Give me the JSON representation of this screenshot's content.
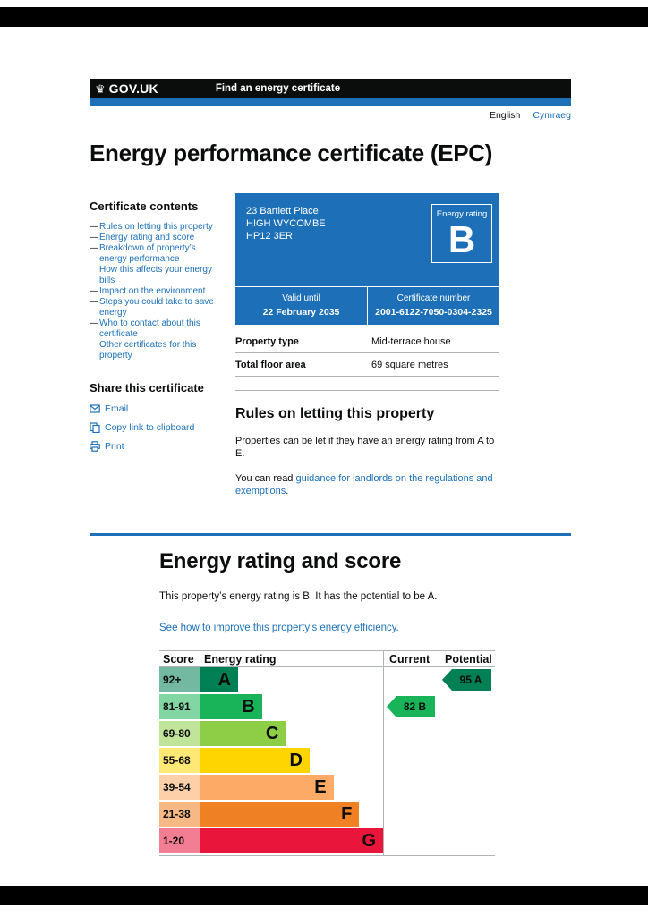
{
  "page": {
    "title": "Energy performance certificate (EPC)",
    "lang_current": "English",
    "lang_other": "Cymraeg"
  },
  "header": {
    "logo": "GOV.UK",
    "crown": "♛",
    "service_name": "Find an energy certificate",
    "bar_color": "#0b0c0c",
    "accent_color": "#1d70b8"
  },
  "sidebar": {
    "contents_title": "Certificate contents",
    "items": [
      {
        "dash": "—",
        "label": "Rules on letting this property"
      },
      {
        "dash": "—",
        "label": "Energy rating and score"
      },
      {
        "dash": "—",
        "label": "Breakdown of property’s energy performance"
      },
      {
        "dash": "",
        "label": "How this affects your energy bills"
      },
      {
        "dash": "—",
        "label": "Impact on the environment"
      },
      {
        "dash": "—",
        "label": "Steps you could take to save energy"
      },
      {
        "dash": "—",
        "label": "Who to contact about this certificate"
      },
      {
        "dash": "",
        "label": "Other certificates for this property"
      }
    ],
    "share_title": "Share this certificate",
    "share_items": [
      {
        "icon": "email-icon",
        "label": "Email"
      },
      {
        "icon": "copy-icon",
        "label": "Copy link to clipboard"
      },
      {
        "icon": "print-icon",
        "label": "Print"
      }
    ]
  },
  "summary": {
    "box_color": "#1d70b8",
    "address_lines": [
      "23 Bartlett Place",
      "HIGH WYCOMBE",
      "HP12 3ER"
    ],
    "energy_rating_label": "Energy rating",
    "energy_rating_value": "B",
    "valid_until_label": "Valid until",
    "valid_until_value": "22 February 2035",
    "certificate_number_label": "Certificate number",
    "certificate_number_value": "2001-6122-7050-0304-2325"
  },
  "property_details": {
    "rows": [
      {
        "label": "Property type",
        "value": "Mid-terrace house"
      },
      {
        "label": "Total floor area",
        "value": "69 square metres"
      }
    ]
  },
  "letting_rules": {
    "heading": "Rules on letting this property",
    "para1": "Properties can be let if they have an energy rating from A to E.",
    "para2_prefix": "You can read ",
    "para2_link": "guidance for landlords on the regulations and exemptions",
    "para2_suffix": "."
  },
  "rating_section": {
    "heading": "Energy rating and score",
    "description": "This property’s energy rating is B. It has the potential to be A.",
    "improve_link": "See how to improve this property’s energy efficiency."
  },
  "chart_data": {
    "type": "bar",
    "title": "Energy efficiency rating bands",
    "columns": [
      "Score",
      "Energy rating",
      "Current",
      "Potential"
    ],
    "bands": [
      {
        "score": "92+",
        "letter": "A",
        "color": "#008054",
        "tint": "#73b9a2",
        "width_pct": 21
      },
      {
        "score": "81-91",
        "letter": "B",
        "color": "#19b459",
        "tint": "#81d6a4",
        "width_pct": 34
      },
      {
        "score": "69-80",
        "letter": "C",
        "color": "#8dce46",
        "tint": "#c0e499",
        "width_pct": 47
      },
      {
        "score": "55-68",
        "letter": "D",
        "color": "#ffd500",
        "tint": "#ffe873",
        "width_pct": 60
      },
      {
        "score": "39-54",
        "letter": "E",
        "color": "#fcaa65",
        "tint": "#fdd0aa",
        "width_pct": 73
      },
      {
        "score": "21-38",
        "letter": "F",
        "color": "#ef8023",
        "tint": "#f6b986",
        "width_pct": 87
      },
      {
        "score": "1-20",
        "letter": "G",
        "color": "#e9153b",
        "tint": "#f37e93",
        "width_pct": 100
      }
    ],
    "current": {
      "label": "82 B",
      "score": 82,
      "letter": "B",
      "band_index": 1,
      "color": "#19b459"
    },
    "potential": {
      "label": "95 A",
      "score": 95,
      "letter": "A",
      "band_index": 0,
      "color": "#008054"
    }
  }
}
